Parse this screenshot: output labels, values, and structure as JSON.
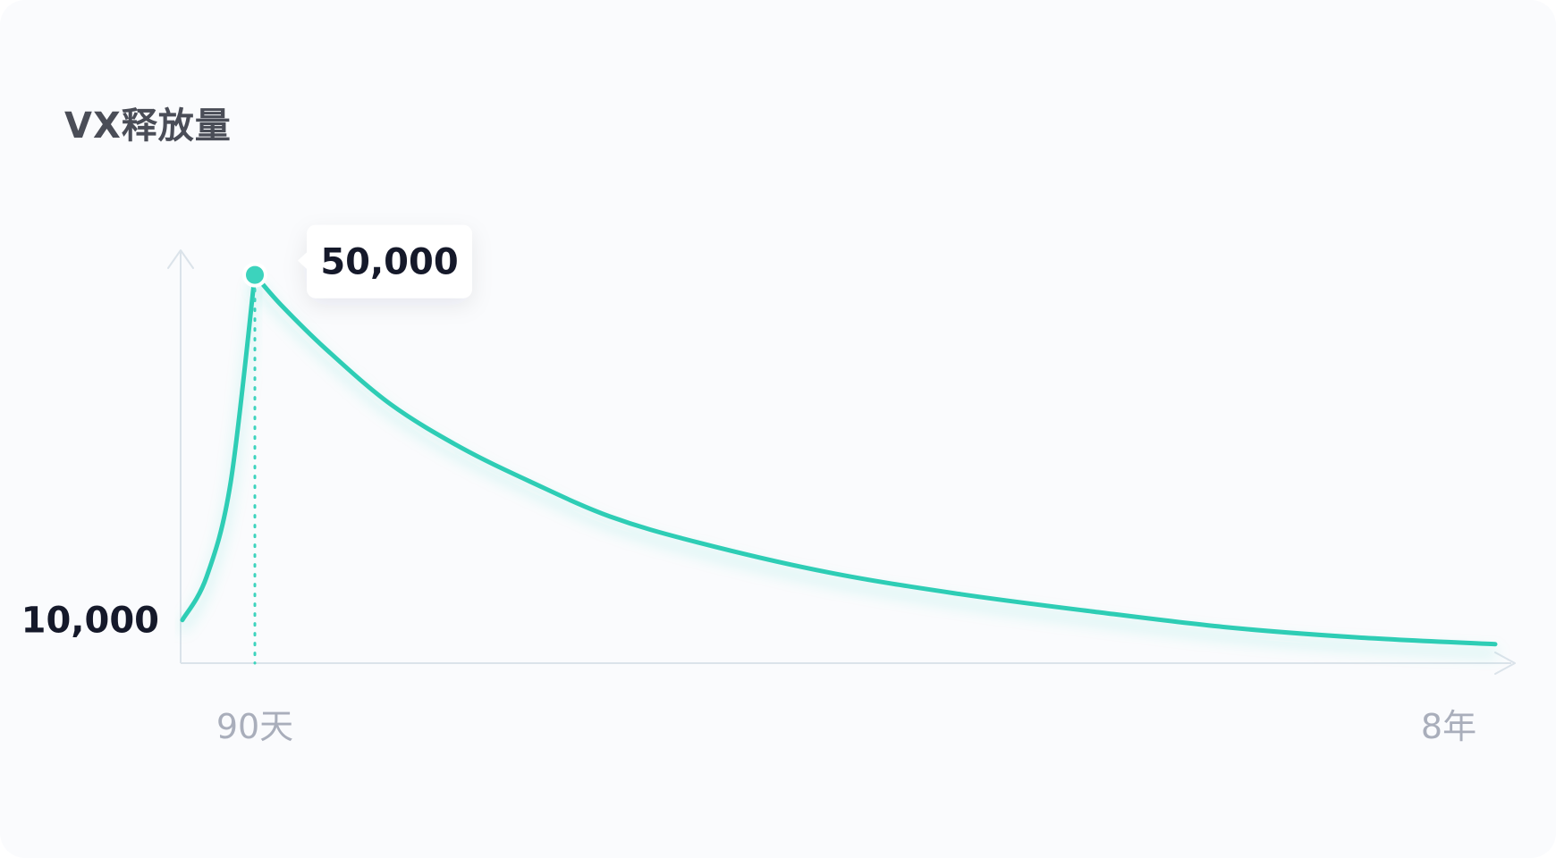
{
  "chart_data": {
    "type": "line",
    "title": "VX释放量",
    "xlabel": "",
    "ylabel": "",
    "x_tick_labels": [
      "90天",
      "8年"
    ],
    "y_tick_labels": [
      "10,000"
    ],
    "annotation": {
      "label": "50,000",
      "x_days": 90,
      "y": 50000
    },
    "x_unit": "days",
    "xlim": [
      0,
      2920
    ],
    "ylim": [
      5000,
      57000
    ],
    "grid": false,
    "legend": "none",
    "series": [
      {
        "x": [
          0,
          30,
          60,
          90,
          150,
          250,
          400,
          560,
          720,
          900,
          1100,
          1400,
          1700,
          2000,
          2300,
          2600,
          2920
        ],
        "y": [
          10000,
          15000,
          26000,
          50000,
          46500,
          41500,
          35000,
          30000,
          26000,
          22000,
          19000,
          15500,
          13000,
          11000,
          9200,
          8000,
          7200
        ]
      }
    ],
    "colors": {
      "line": "#2ecdb5",
      "point": "#3cd3bd",
      "axis": "#dbe3ea",
      "tick_dark": "#15192a",
      "tick_light": "#a9aebb",
      "title": "#4a4d57"
    }
  }
}
